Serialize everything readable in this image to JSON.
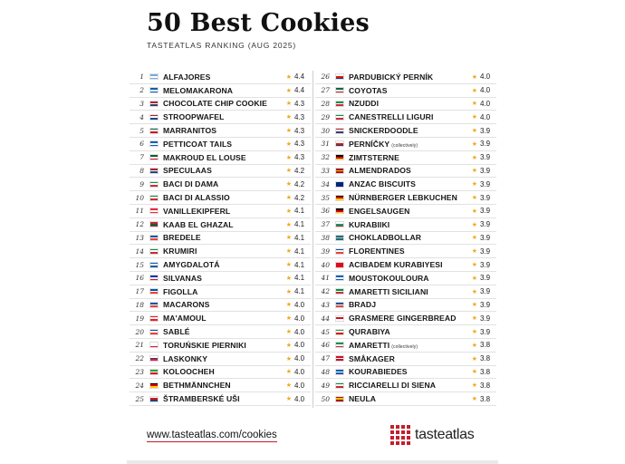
{
  "header": {
    "title": "50 Best Cookies",
    "subtitle": "TASTEATLAS RANKING (AUG 2025)"
  },
  "colors": {
    "accent": "#c41e2e",
    "star": "#f2a81d"
  },
  "star_icon": "star-icon",
  "cookies": [
    {
      "rank": "1",
      "flag": [
        "#74acdf",
        "#ffffff",
        "#74acdf"
      ],
      "name": "ALFAJORES",
      "note": "",
      "rating": "4.4"
    },
    {
      "rank": "2",
      "flag": [
        "#0d5eaf",
        "#ffffff",
        "#0d5eaf"
      ],
      "name": "MELOMAKARONA",
      "note": "",
      "rating": "4.4"
    },
    {
      "rank": "3",
      "flag": [
        "#b22234",
        "#ffffff",
        "#3c3b6e"
      ],
      "name": "CHOCOLATE CHIP COOKIE",
      "note": "",
      "rating": "4.3"
    },
    {
      "rank": "4",
      "flag": [
        "#ae1c28",
        "#ffffff",
        "#21468b"
      ],
      "name": "STROOPWAFEL",
      "note": "",
      "rating": "4.3"
    },
    {
      "rank": "5",
      "flag": [
        "#006847",
        "#ffffff",
        "#ce1126"
      ],
      "name": "MARRANITOS",
      "note": "",
      "rating": "4.3"
    },
    {
      "rank": "6",
      "flag": [
        "#005eb8",
        "#ffffff",
        "#005eb8"
      ],
      "name": "PETTICOAT TAILS",
      "note": "",
      "rating": "4.3"
    },
    {
      "rank": "7",
      "flag": [
        "#006233",
        "#ffffff",
        "#d21034"
      ],
      "name": "MAKROUD EL LOUSE",
      "note": "",
      "rating": "4.3"
    },
    {
      "rank": "8",
      "flag": [
        "#ae1c28",
        "#ffffff",
        "#21468b"
      ],
      "name": "SPECULAAS",
      "note": "",
      "rating": "4.2"
    },
    {
      "rank": "9",
      "flag": [
        "#009246",
        "#ffffff",
        "#ce2b37"
      ],
      "name": "BACI DI DAMA",
      "note": "",
      "rating": "4.2"
    },
    {
      "rank": "10",
      "flag": [
        "#009246",
        "#ffffff",
        "#ce2b37"
      ],
      "name": "BACI DI ALASSIO",
      "note": "",
      "rating": "4.2"
    },
    {
      "rank": "11",
      "flag": [
        "#ed2939",
        "#ffffff",
        "#ed2939"
      ],
      "name": "VANILLEKIPFERL",
      "note": "",
      "rating": "4.1"
    },
    {
      "rank": "12",
      "flag": [
        "#c1272d",
        "#006233",
        "#c1272d"
      ],
      "name": "KAAB EL GHAZAL",
      "note": "",
      "rating": "4.1"
    },
    {
      "rank": "13",
      "flag": [
        "#0055a4",
        "#ffffff",
        "#ef4135"
      ],
      "name": "BREDELE",
      "note": "",
      "rating": "4.1"
    },
    {
      "rank": "14",
      "flag": [
        "#009246",
        "#ffffff",
        "#ce2b37"
      ],
      "name": "KRUMIRI",
      "note": "",
      "rating": "4.1"
    },
    {
      "rank": "15",
      "flag": [
        "#0d5eaf",
        "#ffffff",
        "#0d5eaf"
      ],
      "name": "AMYGDALOTÁ",
      "note": "",
      "rating": "4.1"
    },
    {
      "rank": "16",
      "flag": [
        "#0038a8",
        "#ffffff",
        "#ce1126"
      ],
      "name": "SILVANAS",
      "note": "",
      "rating": "4.1"
    },
    {
      "rank": "17",
      "flag": [
        "#0055a4",
        "#ffffff",
        "#ef4135"
      ],
      "name": "FIGOLLA",
      "note": "",
      "rating": "4.1"
    },
    {
      "rank": "18",
      "flag": [
        "#0055a4",
        "#ffffff",
        "#ef4135"
      ],
      "name": "MACARONS",
      "note": "",
      "rating": "4.0"
    },
    {
      "rank": "19",
      "flag": [
        "#ed1c24",
        "#ffffff",
        "#ed1c24"
      ],
      "name": "MA'AMOUL",
      "note": "",
      "rating": "4.0"
    },
    {
      "rank": "20",
      "flag": [
        "#0055a4",
        "#ffffff",
        "#ef4135"
      ],
      "name": "SABLÉ",
      "note": "",
      "rating": "4.0"
    },
    {
      "rank": "21",
      "flag": [
        "#ffffff",
        "#ffffff",
        "#dc143c"
      ],
      "name": "TORUŃSKIE PIERNIKI",
      "note": "",
      "rating": "4.0"
    },
    {
      "rank": "22",
      "flag": [
        "#ffffff",
        "#0b4ea2",
        "#ee1c25"
      ],
      "name": "LASKONKY",
      "note": "",
      "rating": "4.0"
    },
    {
      "rank": "23",
      "flag": [
        "#239f40",
        "#ffffff",
        "#da0000"
      ],
      "name": "KOLOOCHEH",
      "note": "",
      "rating": "4.0"
    },
    {
      "rank": "24",
      "flag": [
        "#000000",
        "#dd0000",
        "#ffce00"
      ],
      "name": "BETHMÄNNCHEN",
      "note": "",
      "rating": "4.0"
    },
    {
      "rank": "25",
      "flag": [
        "#ffffff",
        "#d7141a",
        "#11457e"
      ],
      "name": "ŠTRAMBERSKÉ UŠI",
      "note": "",
      "rating": "4.0"
    },
    {
      "rank": "26",
      "flag": [
        "#ffffff",
        "#d7141a",
        "#11457e"
      ],
      "name": "PARDUBICKÝ PERNÍK",
      "note": "",
      "rating": "4.0"
    },
    {
      "rank": "27",
      "flag": [
        "#006847",
        "#ffffff",
        "#ce1126"
      ],
      "name": "COYOTAS",
      "note": "",
      "rating": "4.0"
    },
    {
      "rank": "28",
      "flag": [
        "#009246",
        "#ffffff",
        "#ce2b37"
      ],
      "name": "NZUDDI",
      "note": "",
      "rating": "4.0"
    },
    {
      "rank": "29",
      "flag": [
        "#009246",
        "#ffffff",
        "#ce2b37"
      ],
      "name": "CANESTRELLI LIGURI",
      "note": "",
      "rating": "4.0"
    },
    {
      "rank": "30",
      "flag": [
        "#b22234",
        "#ffffff",
        "#3c3b6e"
      ],
      "name": "SNICKERDOODLE",
      "note": "",
      "rating": "3.9"
    },
    {
      "rank": "31",
      "flag": [
        "#ffffff",
        "#d7141a",
        "#11457e"
      ],
      "name": "PERNÍČKY",
      "note": "(collectively)",
      "rating": "3.9"
    },
    {
      "rank": "32",
      "flag": [
        "#000000",
        "#dd0000",
        "#ffce00"
      ],
      "name": "ZIMTSTERNE",
      "note": "",
      "rating": "3.9"
    },
    {
      "rank": "33",
      "flag": [
        "#aa151b",
        "#f1bf00",
        "#aa151b"
      ],
      "name": "ALMENDRADOS",
      "note": "",
      "rating": "3.9"
    },
    {
      "rank": "34",
      "flag": [
        "#00247d",
        "#00247d",
        "#00247d"
      ],
      "name": "ANZAC BISCUITS",
      "note": "",
      "rating": "3.9"
    },
    {
      "rank": "35",
      "flag": [
        "#000000",
        "#dd0000",
        "#ffce00"
      ],
      "name": "NÜRNBERGER LEBKUCHEN",
      "note": "",
      "rating": "3.9"
    },
    {
      "rank": "36",
      "flag": [
        "#000000",
        "#dd0000",
        "#ffce00"
      ],
      "name": "ENGELSAUGEN",
      "note": "",
      "rating": "3.9"
    },
    {
      "rank": "37",
      "flag": [
        "#ffffff",
        "#00966e",
        "#d62612"
      ],
      "name": "KURABIIKI",
      "note": "",
      "rating": "3.9"
    },
    {
      "rank": "38",
      "flag": [
        "#006aa7",
        "#fecc00",
        "#006aa7"
      ],
      "name": "CHOKLADBOLLAR",
      "note": "",
      "rating": "3.9"
    },
    {
      "rank": "39",
      "flag": [
        "#0055a4",
        "#ffffff",
        "#ef4135"
      ],
      "name": "FLORENTINES",
      "note": "",
      "rating": "3.9"
    },
    {
      "rank": "40",
      "flag": [
        "#e30a17",
        "#e30a17",
        "#e30a17"
      ],
      "name": "ACIBADEM KURABIYESI",
      "note": "",
      "rating": "3.9"
    },
    {
      "rank": "41",
      "flag": [
        "#0d5eaf",
        "#ffffff",
        "#0d5eaf"
      ],
      "name": "MOUSTOKOULOURA",
      "note": "",
      "rating": "3.9"
    },
    {
      "rank": "42",
      "flag": [
        "#009246",
        "#ffffff",
        "#ce2b37"
      ],
      "name": "AMARETTI SICILIANI",
      "note": "",
      "rating": "3.9"
    },
    {
      "rank": "43",
      "flag": [
        "#0055a4",
        "#ffffff",
        "#ef4135"
      ],
      "name": "BRADJ",
      "note": "",
      "rating": "3.9"
    },
    {
      "rank": "44",
      "flag": [
        "#ffffff",
        "#ce1124",
        "#ffffff"
      ],
      "name": "GRASMERE GINGERBREAD",
      "note": "",
      "rating": "3.9"
    },
    {
      "rank": "45",
      "flag": [
        "#239f40",
        "#ffffff",
        "#da0000"
      ],
      "name": "QURABIYA",
      "note": "",
      "rating": "3.9"
    },
    {
      "rank": "46",
      "flag": [
        "#009246",
        "#ffffff",
        "#ce2b37"
      ],
      "name": "AMARETTI",
      "note": "(collectively)",
      "rating": "3.8"
    },
    {
      "rank": "47",
      "flag": [
        "#c8102e",
        "#ffffff",
        "#c8102e"
      ],
      "name": "SMÅKAGER",
      "note": "",
      "rating": "3.8"
    },
    {
      "rank": "48",
      "flag": [
        "#0d5eaf",
        "#ffffff",
        "#0d5eaf"
      ],
      "name": "KOURABIEDES",
      "note": "",
      "rating": "3.8"
    },
    {
      "rank": "49",
      "flag": [
        "#009246",
        "#ffffff",
        "#ce2b37"
      ],
      "name": "RICCIARELLI DI SIENA",
      "note": "",
      "rating": "3.8"
    },
    {
      "rank": "50",
      "flag": [
        "#aa151b",
        "#f1bf00",
        "#aa151b"
      ],
      "name": "NEULA",
      "note": "",
      "rating": "3.8"
    }
  ],
  "footer": {
    "link": "www.tasteatlas.com/cookies",
    "brand": "tasteatlas",
    "brand_icon": "tasteatlas-logo-icon"
  }
}
